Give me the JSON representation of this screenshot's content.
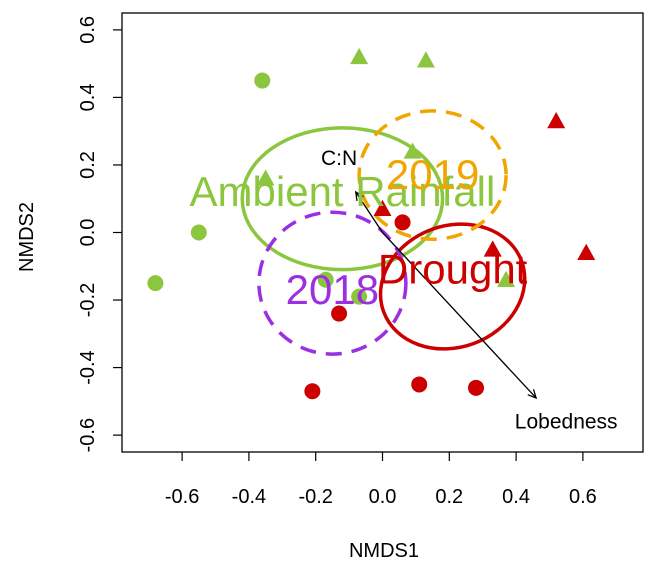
{
  "chart_data": {
    "type": "scatter",
    "title": "",
    "xlabel": "NMDS1",
    "ylabel": "NMDS2",
    "xlim": [
      -0.78,
      0.78
    ],
    "ylim": [
      -0.65,
      0.65
    ],
    "x_ticks": [
      "-0.6",
      "-0.4",
      "-0.2",
      "0.0",
      "0.2",
      "0.4",
      "0.6"
    ],
    "y_ticks": [
      "-0.6",
      "-0.4",
      "-0.2",
      "0.0",
      "0.2",
      "0.4",
      "0.6"
    ],
    "grid": false,
    "legend": "none",
    "colors": {
      "ambient": "#8cc63f",
      "drought": "#cc0000",
      "year_2018": "#9b30e0",
      "year_2019": "#f0a500",
      "vector": "#000000"
    },
    "series": [
      {
        "treatment": "Ambient Rainfall",
        "year": "2018",
        "marker": "circle",
        "color": "#8cc63f",
        "points": [
          {
            "x": -0.68,
            "y": -0.15
          },
          {
            "x": -0.55,
            "y": 0.0
          },
          {
            "x": -0.36,
            "y": 0.45
          },
          {
            "x": -0.17,
            "y": -0.14
          },
          {
            "x": -0.07,
            "y": -0.19
          }
        ]
      },
      {
        "treatment": "Ambient Rainfall",
        "year": "2019",
        "marker": "triangle",
        "color": "#8cc63f",
        "points": [
          {
            "x": -0.35,
            "y": 0.16
          },
          {
            "x": -0.07,
            "y": 0.52
          },
          {
            "x": 0.13,
            "y": 0.51
          },
          {
            "x": 0.09,
            "y": 0.24
          },
          {
            "x": 0.37,
            "y": -0.14
          }
        ]
      },
      {
        "treatment": "Drought",
        "year": "2018",
        "marker": "circle",
        "color": "#cc0000",
        "points": [
          {
            "x": -0.21,
            "y": -0.47
          },
          {
            "x": -0.13,
            "y": -0.24
          },
          {
            "x": 0.06,
            "y": 0.03
          },
          {
            "x": 0.11,
            "y": -0.45
          },
          {
            "x": 0.28,
            "y": -0.46
          }
        ]
      },
      {
        "treatment": "Drought",
        "year": "2019",
        "marker": "triangle",
        "color": "#cc0000",
        "points": [
          {
            "x": 0.0,
            "y": 0.07
          },
          {
            "x": 0.33,
            "y": -0.05
          },
          {
            "x": 0.52,
            "y": 0.33
          },
          {
            "x": 0.61,
            "y": -0.06
          }
        ]
      }
    ],
    "ellipses": [
      {
        "label": "Ambient Rainfall",
        "color": "#8cc63f",
        "dash": "solid",
        "cx": -0.12,
        "cy": 0.1,
        "rx": 0.3,
        "ry": 0.21,
        "angle": 0
      },
      {
        "label": "Drought",
        "color": "#cc0000",
        "dash": "solid",
        "cx": 0.21,
        "cy": -0.16,
        "rx": 0.22,
        "ry": 0.18,
        "angle": -20
      },
      {
        "label": "2018",
        "color": "#9b30e0",
        "dash": "dashed",
        "cx": -0.15,
        "cy": -0.15,
        "rx": 0.22,
        "ry": 0.21,
        "angle": 0
      },
      {
        "label": "2019",
        "color": "#f0a500",
        "dash": "dashed",
        "cx": 0.15,
        "cy": 0.17,
        "rx": 0.22,
        "ry": 0.19,
        "angle": 0
      }
    ],
    "ellipse_labels": [
      {
        "text": "Ambient Rainfall",
        "color": "#8cc63f",
        "x": -0.12,
        "y": 0.12
      },
      {
        "text": "2019",
        "color": "#f0a500",
        "x": 0.15,
        "y": 0.17
      },
      {
        "text": "Drought",
        "color": "#cc0000",
        "x": 0.21,
        "y": -0.11
      },
      {
        "text": "2018",
        "color": "#9b30e0",
        "x": -0.15,
        "y": -0.17
      }
    ],
    "vectors": [
      {
        "label": "C:N",
        "x": -0.08,
        "y": 0.12,
        "label_x": -0.13,
        "label_y": 0.2
      },
      {
        "label": "Lobedness",
        "x": 0.46,
        "y": -0.49,
        "label_x": 0.55,
        "label_y": -0.58
      }
    ],
    "vector_origin": {
      "x": 0.0,
      "y": 0.0
    }
  }
}
